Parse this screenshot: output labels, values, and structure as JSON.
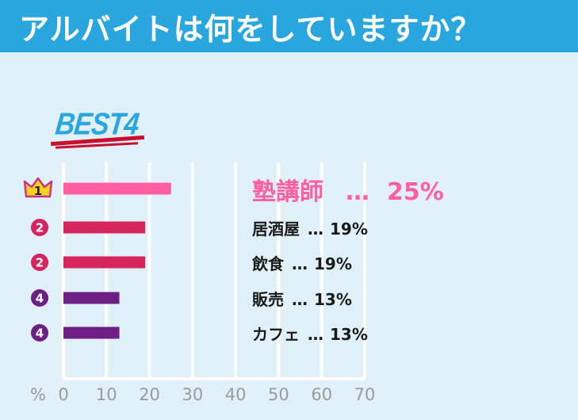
{
  "header": {
    "title": "アルバイトは何をしていますか？"
  },
  "badge": {
    "text": "BEST4"
  },
  "colors": {
    "header": "#2aa6df",
    "background": "#dff0f8",
    "rank1": "#ff5fa0",
    "rank2": "#d6245e",
    "rank4": "#6e1f86",
    "grid": "#ffffff",
    "axis_text": "#9a9a9a"
  },
  "chart_data": {
    "type": "bar",
    "orientation": "horizontal",
    "title": "",
    "xlabel": "",
    "x_unit_label": "%",
    "xlim": [
      0,
      70
    ],
    "xticks": [
      "0",
      "10",
      "20",
      "30",
      "40",
      "50",
      "60",
      "70"
    ],
    "grid": true,
    "categories": [
      "塾講師",
      "居酒屋",
      "飲食",
      "販売",
      "カフェ"
    ],
    "values": [
      25,
      19,
      19,
      13,
      13
    ],
    "value_labels": [
      "25%",
      "19%",
      "19%",
      "13%",
      "13%"
    ],
    "ranks": [
      "1",
      "2",
      "2",
      "4",
      "4"
    ],
    "separator": "…"
  }
}
